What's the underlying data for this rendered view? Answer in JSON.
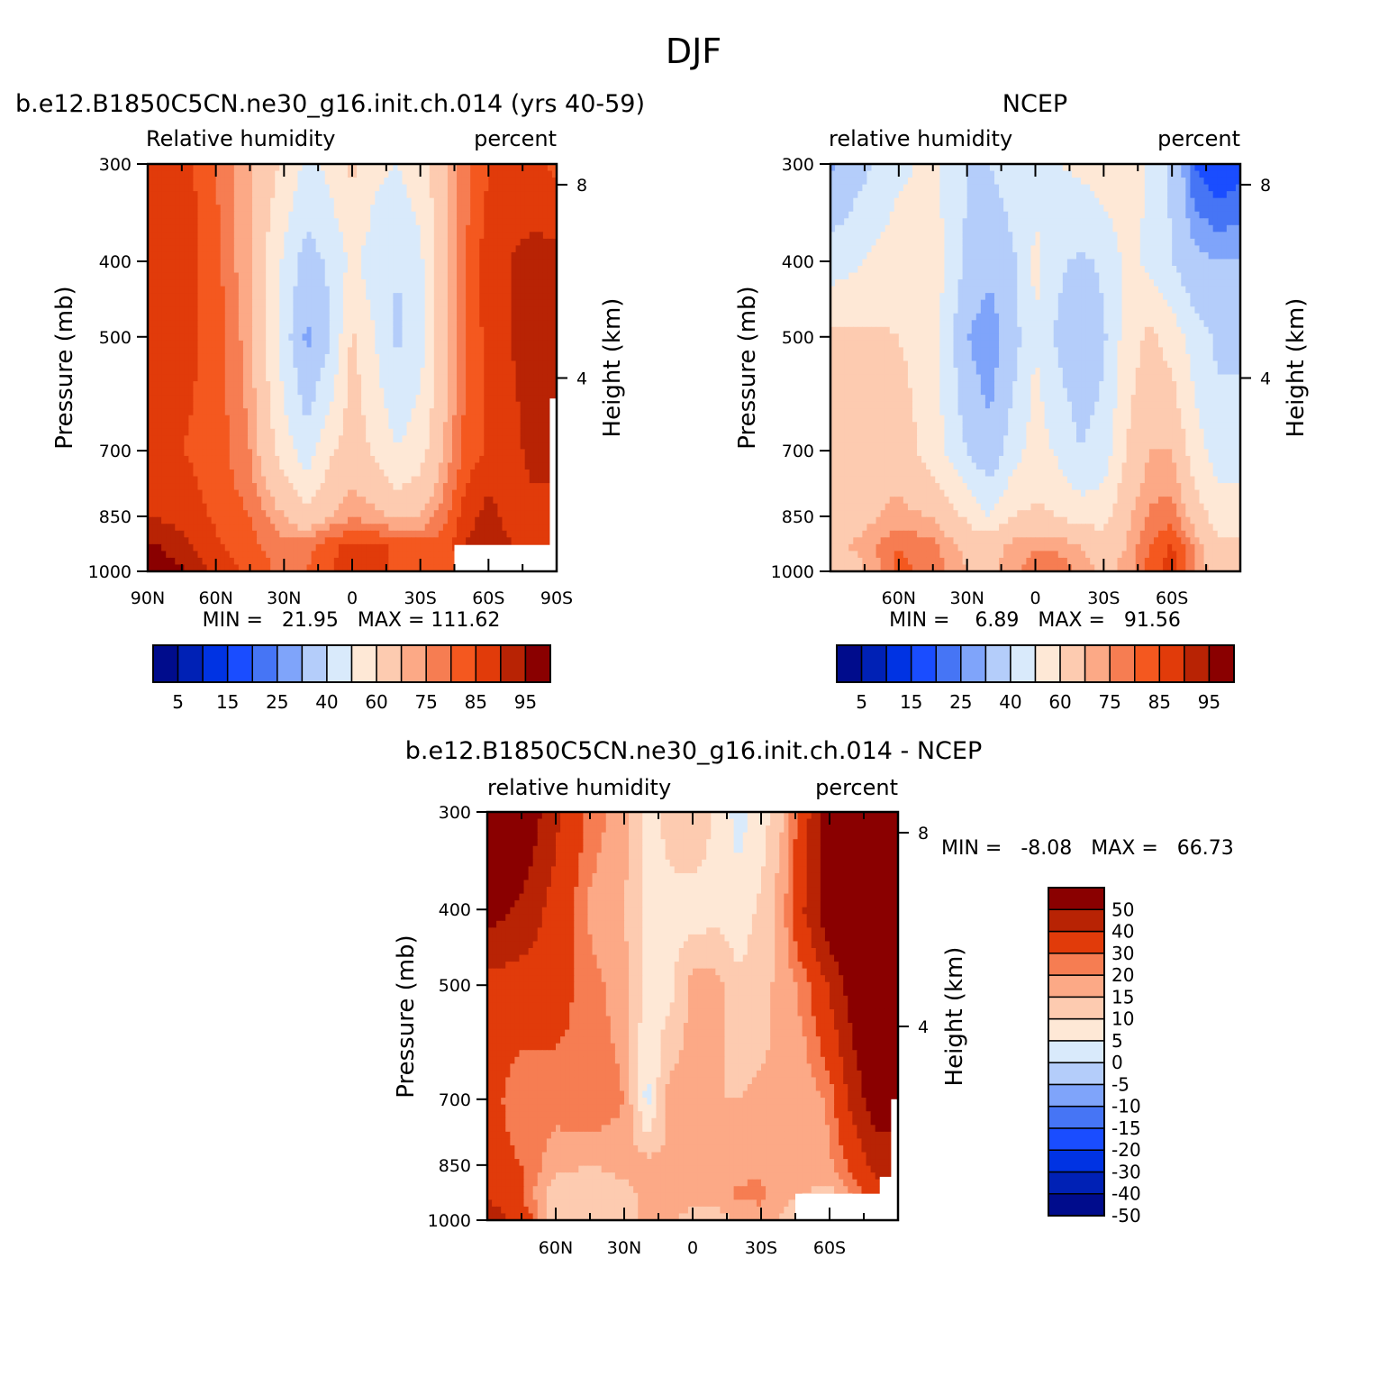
{
  "figure": {
    "title": "DJF"
  },
  "palettes": {
    "abs": [
      "#000c8c",
      "#0021b5",
      "#0033e3",
      "#1a4dff",
      "#4675f5",
      "#7fa4fa",
      "#b4cdfa",
      "#d9eafb",
      "#fee8d6",
      "#fdcbb0",
      "#fca986",
      "#f67d52",
      "#f4581f",
      "#e13b0a",
      "#b82304",
      "#8a0000"
    ],
    "diff": [
      "#000c8c",
      "#0021b5",
      "#0033e3",
      "#1a4dff",
      "#4675f5",
      "#7fa4fa",
      "#b4cdfa",
      "#d9eafb",
      "#fee8d6",
      "#fdcbb0",
      "#fca986",
      "#f67d52",
      "#e13b0a",
      "#b82304",
      "#8a0000"
    ]
  },
  "chart_data": [
    {
      "id": "model",
      "type": "heatmap",
      "title": "b.e12.B1850C5CN.ne30_g16.init.ch.014 (yrs 40-59)",
      "left_label": "Relative humidity",
      "right_label": "percent",
      "ylabel": "Pressure (mb)",
      "y2label": "Height (km)",
      "xticks": [
        "90N",
        "60N",
        "30N",
        "0",
        "30S",
        "60S",
        "90S"
      ],
      "yticks": [
        "300",
        "400",
        "500",
        "700",
        "850",
        "1000"
      ],
      "y2ticks": [
        "8",
        "4"
      ],
      "stats": "MIN =   21.95   MAX = 111.62",
      "min": 21.95,
      "max": 111.62,
      "colorbar_labels": [
        "5",
        "15",
        "25",
        "40",
        "60",
        "75",
        "85",
        "95"
      ],
      "levels": [
        5,
        10,
        15,
        20,
        25,
        30,
        40,
        50,
        60,
        70,
        75,
        80,
        85,
        90,
        95
      ],
      "x_lat": [
        90,
        75,
        60,
        45,
        30,
        20,
        10,
        0,
        -10,
        -20,
        -30,
        -40,
        -50,
        -60,
        -70,
        -80,
        -90
      ],
      "p_levels": [
        300,
        400,
        500,
        700,
        850,
        925,
        1000
      ],
      "values": [
        [
          90,
          88,
          80,
          70,
          58,
          48,
          52,
          62,
          52,
          50,
          55,
          68,
          78,
          85,
          88,
          86,
          84
        ],
        [
          90,
          88,
          82,
          70,
          48,
          35,
          42,
          52,
          45,
          40,
          48,
          66,
          80,
          88,
          90,
          92,
          92
        ],
        [
          88,
          87,
          83,
          72,
          45,
          28,
          38,
          62,
          50,
          38,
          46,
          66,
          80,
          87,
          90,
          93,
          94
        ],
        [
          86,
          85,
          83,
          75,
          55,
          45,
          58,
          66,
          58,
          50,
          56,
          70,
          82,
          86,
          88,
          92,
          92
        ],
        [
          90,
          88,
          84,
          80,
          70,
          62,
          70,
          74,
          72,
          68,
          70,
          78,
          88,
          92,
          88,
          88,
          88
        ],
        [
          96,
          92,
          86,
          82,
          76,
          78,
          84,
          86,
          86,
          84,
          82,
          82,
          90,
          94,
          90,
          88,
          88
        ],
        [
          100,
          96,
          88,
          84,
          78,
          80,
          85,
          86,
          86,
          84,
          82,
          80,
          86,
          92,
          90,
          88,
          88
        ]
      ],
      "missing": [
        {
          "lat1": -45,
          "lat2": -90,
          "p1": 925,
          "p2": 1000
        },
        {
          "lat1": -87,
          "lat2": -90,
          "p1": 600,
          "p2": 1000
        }
      ]
    },
    {
      "id": "ncep",
      "type": "heatmap",
      "title": "NCEP",
      "left_label": "relative humidity",
      "right_label": "percent",
      "ylabel": "Pressure (mb)",
      "y2label": "Height (km)",
      "xticks": [
        "60N",
        "30N",
        "0",
        "30S",
        "60S"
      ],
      "yticks": [
        "300",
        "400",
        "500",
        "700",
        "850",
        "1000"
      ],
      "y2ticks": [
        "8",
        "4"
      ],
      "stats": "MIN =    6.89   MAX =   91.56",
      "min": 6.89,
      "max": 91.56,
      "colorbar_labels": [
        "5",
        "15",
        "25",
        "40",
        "60",
        "75",
        "85",
        "95"
      ],
      "levels": [
        5,
        10,
        15,
        20,
        25,
        30,
        40,
        50,
        60,
        70,
        75,
        80,
        85,
        90,
        95
      ],
      "x_lat": [
        90,
        75,
        60,
        45,
        30,
        20,
        10,
        0,
        -10,
        -20,
        -30,
        -40,
        -50,
        -60,
        -70,
        -80,
        -90
      ],
      "p_levels": [
        300,
        400,
        500,
        700,
        850,
        925,
        1000
      ],
      "values": [
        [
          28,
          38,
          48,
          52,
          40,
          40,
          45,
          48,
          50,
          52,
          55,
          58,
          48,
          38,
          20,
          15,
          18
        ],
        [
          45,
          50,
          56,
          56,
          38,
          32,
          38,
          52,
          42,
          38,
          42,
          52,
          48,
          40,
          32,
          30,
          30
        ],
        [
          62,
          62,
          60,
          55,
          30,
          25,
          35,
          50,
          38,
          32,
          38,
          55,
          62,
          56,
          45,
          38,
          38
        ],
        [
          62,
          70,
          66,
          55,
          40,
          32,
          45,
          55,
          48,
          40,
          45,
          60,
          70,
          70,
          55,
          45,
          45
        ],
        [
          66,
          68,
          72,
          70,
          58,
          50,
          60,
          62,
          60,
          55,
          56,
          68,
          76,
          78,
          66,
          55,
          55
        ],
        [
          68,
          72,
          80,
          76,
          68,
          66,
          72,
          74,
          74,
          70,
          66,
          70,
          80,
          86,
          74,
          62,
          62
        ],
        [
          62,
          70,
          82,
          78,
          70,
          68,
          74,
          78,
          78,
          74,
          68,
          72,
          82,
          88,
          76,
          66,
          66
        ]
      ],
      "missing": []
    },
    {
      "id": "diff",
      "type": "heatmap",
      "title": "b.e12.B1850C5CN.ne30_g16.init.ch.014 - NCEP",
      "left_label": "relative humidity",
      "right_label": "percent",
      "ylabel": "Pressure (mb)",
      "y2label": "Height (km)",
      "xticks": [
        "60N",
        "30N",
        "0",
        "30S",
        "60S"
      ],
      "yticks": [
        "300",
        "400",
        "500",
        "700",
        "850",
        "1000"
      ],
      "y2ticks": [
        "8",
        "4"
      ],
      "stats": "MIN =   -8.08   MAX =   66.73",
      "min": -8.08,
      "max": 66.73,
      "colorbar_labels": [
        "50",
        "40",
        "30",
        "20",
        "15",
        "10",
        "5",
        "0",
        "-5",
        "-10",
        "-15",
        "-20",
        "-30",
        "-40",
        "-50"
      ],
      "levels": [
        -50,
        -40,
        -30,
        -20,
        -15,
        -10,
        -5,
        0,
        5,
        10,
        15,
        20,
        30,
        40,
        50
      ],
      "x_lat": [
        90,
        75,
        60,
        45,
        30,
        20,
        10,
        0,
        -10,
        -20,
        -30,
        -40,
        -50,
        -60,
        -70,
        -80,
        -90
      ],
      "p_levels": [
        300,
        400,
        500,
        700,
        850,
        925,
        1000
      ],
      "values": [
        [
          62,
          50,
          32,
          18,
          12,
          4,
          6,
          10,
          4,
          -2,
          2,
          10,
          28,
          46,
          66,
          70,
          66
        ],
        [
          45,
          38,
          26,
          14,
          10,
          3,
          4,
          2,
          3,
          2,
          6,
          14,
          32,
          48,
          58,
          62,
          62
        ],
        [
          26,
          25,
          23,
          17,
          12,
          3,
          3,
          12,
          12,
          6,
          8,
          12,
          18,
          31,
          45,
          55,
          56
        ],
        [
          24,
          15,
          17,
          20,
          15,
          -2,
          13,
          11,
          10,
          10,
          11,
          10,
          12,
          16,
          33,
          47,
          47
        ],
        [
          24,
          20,
          12,
          10,
          12,
          12,
          10,
          12,
          12,
          13,
          14,
          10,
          12,
          14,
          22,
          33,
          33
        ],
        [
          28,
          20,
          6,
          6,
          8,
          12,
          12,
          12,
          12,
          16,
          16,
          12,
          10,
          8,
          16,
          26,
          26
        ],
        [
          38,
          26,
          6,
          6,
          8,
          12,
          11,
          8,
          8,
          10,
          14,
          8,
          4,
          4,
          14,
          22,
          22
        ]
      ],
      "missing": [
        {
          "lat1": -45,
          "lat2": -90,
          "p1": 925,
          "p2": 1000
        },
        {
          "lat1": -87,
          "lat2": -90,
          "p1": 700,
          "p2": 1000
        },
        {
          "lat1": -82,
          "lat2": -90,
          "p1": 880,
          "p2": 1000
        }
      ]
    }
  ]
}
